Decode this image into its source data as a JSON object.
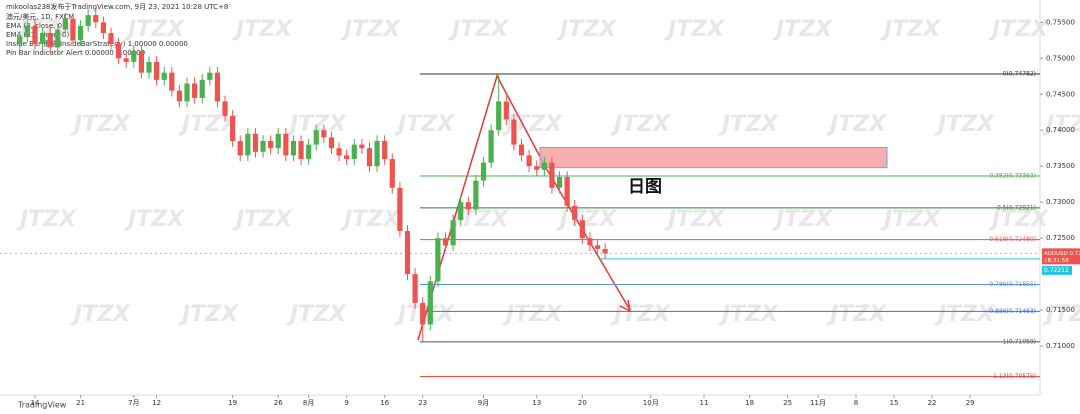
{
  "chart_data": {
    "type": "candlestick",
    "header": "mikoolas238发布于TradingView.com, 9月 23, 2021 10:28 UTC+8",
    "legend_lines": [
      "澳元/美元, 1D, FXCM",
      "EMA (8, close, 0)",
      "EMA (21, close, 0)",
      "Inside Bar 策略(InsideBarStrategy) 1.00000 0.00000",
      "Pin Bar Indicator Alert 0.00000 0.00000"
    ],
    "annotation": "日图",
    "watermark": "JTZX",
    "brand": "TradingView",
    "up_color": "#4caf50",
    "down_color": "#ef5350",
    "open": [
      0.752,
      0.753,
      0.7545,
      0.752,
      0.7535,
      0.7515,
      0.754,
      0.7555,
      0.7525,
      0.7545,
      0.756,
      0.755,
      0.7535,
      0.752,
      0.75,
      0.7495,
      0.751,
      0.748,
      0.7495,
      0.747,
      0.748,
      0.7455,
      0.744,
      0.7465,
      0.7445,
      0.747,
      0.748,
      0.744,
      0.742,
      0.7385,
      0.7365,
      0.7395,
      0.737,
      0.7385,
      0.7375,
      0.7395,
      0.7365,
      0.7385,
      0.736,
      0.738,
      0.74,
      0.739,
      0.7375,
      0.7365,
      0.736,
      0.738,
      0.7375,
      0.735,
      0.7385,
      0.736,
      0.732,
      0.726,
      0.72,
      0.716,
      0.713,
      0.719,
      0.725,
      0.724,
      0.7275,
      0.73,
      0.729,
      0.733,
      0.7355,
      0.74,
      0.744,
      0.7415,
      0.738,
      0.7365,
      0.735,
      0.7345,
      0.7355,
      0.732,
      0.7335,
      0.7295,
      0.7275,
      0.725,
      0.724,
      0.7235
    ],
    "high": [
      0.7538,
      0.7553,
      0.7553,
      0.7543,
      0.7543,
      0.7548,
      0.7563,
      0.7563,
      0.7553,
      0.7568,
      0.7568,
      0.7558,
      0.7543,
      0.7528,
      0.7508,
      0.7518,
      0.7518,
      0.7503,
      0.7503,
      0.7488,
      0.7488,
      0.7463,
      0.7473,
      0.7473,
      0.7478,
      0.7488,
      0.7488,
      0.7448,
      0.7428,
      0.7393,
      0.7403,
      0.7403,
      0.7393,
      0.7393,
      0.7403,
      0.7403,
      0.7393,
      0.7393,
      0.7388,
      0.7408,
      0.7408,
      0.7398,
      0.7383,
      0.7373,
      0.7388,
      0.7388,
      0.7383,
      0.7393,
      0.7393,
      0.7368,
      0.7328,
      0.7268,
      0.7208,
      0.7168,
      0.7198,
      0.7258,
      0.7258,
      0.7283,
      0.7308,
      0.7308,
      0.7338,
      0.7363,
      0.7408,
      0.7478,
      0.7448,
      0.7423,
      0.7388,
      0.7373,
      0.7358,
      0.7363,
      0.7363,
      0.7343,
      0.7343,
      0.7303,
      0.7283,
      0.7258,
      0.7248,
      0.7243
    ],
    "low": [
      0.7512,
      0.7522,
      0.7512,
      0.7512,
      0.7507,
      0.7507,
      0.7532,
      0.7517,
      0.7517,
      0.7537,
      0.7542,
      0.7527,
      0.7512,
      0.7492,
      0.7487,
      0.7487,
      0.7472,
      0.7472,
      0.7462,
      0.7462,
      0.7447,
      0.7432,
      0.7432,
      0.7437,
      0.7437,
      0.7462,
      0.7432,
      0.7412,
      0.7377,
      0.7357,
      0.7357,
      0.7362,
      0.7362,
      0.7367,
      0.7367,
      0.7357,
      0.7357,
      0.7352,
      0.7352,
      0.7372,
      0.7382,
      0.7367,
      0.7357,
      0.7352,
      0.7352,
      0.7367,
      0.7342,
      0.7342,
      0.7352,
      0.7312,
      0.7252,
      0.7192,
      0.7152,
      0.7106,
      0.7122,
      0.7182,
      0.7232,
      0.7232,
      0.7267,
      0.7282,
      0.7282,
      0.7322,
      0.7347,
      0.7392,
      0.7407,
      0.7372,
      0.7357,
      0.7342,
      0.7337,
      0.7337,
      0.7312,
      0.7312,
      0.7287,
      0.7267,
      0.7242,
      0.7232,
      0.7227,
      0.7221
    ],
    "close": [
      0.753,
      0.7545,
      0.752,
      0.7535,
      0.7515,
      0.754,
      0.7555,
      0.7525,
      0.7545,
      0.756,
      0.755,
      0.7535,
      0.752,
      0.75,
      0.7495,
      0.751,
      0.748,
      0.7495,
      0.747,
      0.748,
      0.7455,
      0.744,
      0.7465,
      0.7445,
      0.747,
      0.748,
      0.744,
      0.742,
      0.7385,
      0.7365,
      0.7395,
      0.737,
      0.7385,
      0.7375,
      0.7395,
      0.7365,
      0.7385,
      0.736,
      0.738,
      0.74,
      0.739,
      0.7375,
      0.7365,
      0.736,
      0.738,
      0.7375,
      0.735,
      0.7385,
      0.736,
      0.732,
      0.726,
      0.72,
      0.716,
      0.713,
      0.719,
      0.725,
      0.724,
      0.7275,
      0.73,
      0.729,
      0.733,
      0.7355,
      0.74,
      0.744,
      0.7415,
      0.738,
      0.7365,
      0.735,
      0.7345,
      0.7355,
      0.732,
      0.7335,
      0.7295,
      0.7275,
      0.725,
      0.724,
      0.7235,
      0.72289
    ],
    "xlim": [
      -2.6,
      134.2
    ],
    "xticks": [
      {
        "value": 2,
        "label": "14"
      },
      {
        "value": 8,
        "label": "21"
      },
      {
        "value": 15,
        "label": "7月"
      },
      {
        "value": 18,
        "label": "12"
      },
      {
        "value": 28,
        "label": "19"
      },
      {
        "value": 34,
        "label": "26"
      },
      {
        "value": 38,
        "label": "8月"
      },
      {
        "value": 43,
        "label": "9"
      },
      {
        "value": 48,
        "label": "16"
      },
      {
        "value": 53,
        "label": "23"
      },
      {
        "value": 61,
        "label": "9月"
      },
      {
        "value": 68,
        "label": "13"
      },
      {
        "value": 74,
        "label": "20"
      },
      {
        "value": 83,
        "label": "10月"
      },
      {
        "value": 90,
        "label": "11"
      },
      {
        "value": 96,
        "label": "18"
      },
      {
        "value": 101,
        "label": "25"
      },
      {
        "value": 105,
        "label": "11月"
      },
      {
        "value": 110,
        "label": "8"
      },
      {
        "value": 115,
        "label": "15"
      },
      {
        "value": 120,
        "label": "22"
      },
      {
        "value": 125,
        "label": "29"
      }
    ],
    "ylim": [
      0.7032,
      0.7581
    ],
    "yticks": [
      {
        "value": 0.755,
        "label": "0.75500"
      },
      {
        "value": 0.75,
        "label": "0.75000"
      },
      {
        "value": 0.745,
        "label": "0.74500"
      },
      {
        "value": 0.74,
        "label": "0.74000"
      },
      {
        "value": 0.735,
        "label": "0.73500"
      },
      {
        "value": 0.73,
        "label": "0.73000"
      },
      {
        "value": 0.725,
        "label": "0.72500"
      },
      {
        "value": 0.715,
        "label": "0.71500"
      },
      {
        "value": 0.71,
        "label": "0.71000"
      }
    ],
    "fib_levels": [
      {
        "label": "0(0.74782)",
        "value": 0.74782,
        "color": "#333333"
      },
      {
        "label": "0.382(0.73363)",
        "value": 0.73363,
        "color": "#4caf50"
      },
      {
        "label": "0.5(0.72921)",
        "value": 0.72921,
        "color": "#2e7d32"
      },
      {
        "label": "0.618(0.72480)",
        "value": 0.7248,
        "color": "#ef5350"
      },
      {
        "label": "0.786(0.71855)",
        "value": 0.71855,
        "color": "#5b8def"
      },
      {
        "label": "0.886(0.71483)",
        "value": 0.71483,
        "color": "#3f6fd8"
      },
      {
        "label": "1(0.71059)",
        "value": 0.71059,
        "color": "#555555"
      },
      {
        "label": "1.13(0.70575)",
        "value": 0.70575,
        "color": "#e53935"
      }
    ],
    "zone": {
      "top": 0.7376,
      "bottom": 0.7348,
      "color": "#f4a0a0"
    },
    "last_price": {
      "label": "AUDUSD 0.72289",
      "value": 0.72289,
      "countdown": "18:31:58"
    },
    "ref_price": {
      "label": "0.72212",
      "value": 0.72212
    }
  }
}
